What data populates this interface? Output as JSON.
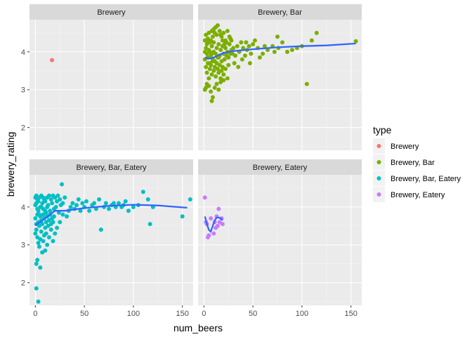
{
  "chart_data": {
    "type": "scatter",
    "xlabel": "num_beers",
    "ylabel": "brewery_rating",
    "xlim": [
      -6,
      161
    ],
    "ylim": [
      1.4,
      4.85
    ],
    "xticks": [
      0,
      50,
      100,
      150
    ],
    "yticks": [
      2,
      3,
      4
    ],
    "legend": {
      "title": "type",
      "position": "right",
      "entries": [
        {
          "label": "Brewery",
          "color": "#F8766D"
        },
        {
          "label": "Brewery, Bar",
          "color": "#7CAE00"
        },
        {
          "label": "Brewery, Bar, Eatery",
          "color": "#00BFC4"
        },
        {
          "label": "Brewery, Eatery",
          "color": "#C77CFF"
        }
      ]
    },
    "smooth_color": "#3366FF",
    "panels": [
      {
        "label": "Brewery",
        "color": "#F8766D",
        "points": [
          [
            17,
            3.78
          ]
        ],
        "smooth": []
      },
      {
        "label": "Brewery, Bar",
        "color": "#7CAE00",
        "points": [
          [
            2,
            4.45
          ],
          [
            3,
            4.2
          ],
          [
            4,
            4.35
          ],
          [
            5,
            4.5
          ],
          [
            6,
            4.0
          ],
          [
            7,
            4.3
          ],
          [
            8,
            4.55
          ],
          [
            9,
            4.4
          ],
          [
            10,
            4.6
          ],
          [
            11,
            4.5
          ],
          [
            12,
            4.65
          ],
          [
            13,
            4.45
          ],
          [
            14,
            4.7
          ],
          [
            16,
            4.55
          ],
          [
            18,
            4.4
          ],
          [
            20,
            4.5
          ],
          [
            22,
            4.3
          ],
          [
            24,
            4.55
          ],
          [
            26,
            4.4
          ],
          [
            28,
            4.3
          ],
          [
            2,
            4.1
          ],
          [
            3,
            3.95
          ],
          [
            4,
            3.85
          ],
          [
            5,
            4.05
          ],
          [
            6,
            3.7
          ],
          [
            7,
            3.9
          ],
          [
            8,
            4.15
          ],
          [
            9,
            3.8
          ],
          [
            10,
            4.0
          ],
          [
            11,
            3.75
          ],
          [
            12,
            3.95
          ],
          [
            13,
            4.1
          ],
          [
            14,
            3.85
          ],
          [
            15,
            4.2
          ],
          [
            16,
            3.9
          ],
          [
            17,
            4.05
          ],
          [
            18,
            3.75
          ],
          [
            19,
            4.15
          ],
          [
            20,
            3.95
          ],
          [
            21,
            3.8
          ],
          [
            22,
            4.1
          ],
          [
            23,
            3.9
          ],
          [
            24,
            4.0
          ],
          [
            25,
            3.85
          ],
          [
            26,
            4.2
          ],
          [
            27,
            3.95
          ],
          [
            28,
            4.05
          ],
          [
            30,
            4.1
          ],
          [
            32,
            3.9
          ],
          [
            34,
            4.15
          ],
          [
            2,
            3.6
          ],
          [
            3,
            3.45
          ],
          [
            4,
            3.7
          ],
          [
            5,
            3.3
          ],
          [
            6,
            3.55
          ],
          [
            7,
            3.65
          ],
          [
            8,
            3.4
          ],
          [
            9,
            3.75
          ],
          [
            10,
            3.5
          ],
          [
            11,
            3.6
          ],
          [
            12,
            3.35
          ],
          [
            13,
            3.7
          ],
          [
            14,
            3.55
          ],
          [
            15,
            3.45
          ],
          [
            16,
            3.65
          ],
          [
            17,
            3.3
          ],
          [
            18,
            3.5
          ],
          [
            19,
            3.6
          ],
          [
            20,
            3.4
          ],
          [
            22,
            3.55
          ],
          [
            1,
            3.0
          ],
          [
            2,
            3.05
          ],
          [
            3,
            3.15
          ],
          [
            5,
            3.1
          ],
          [
            7,
            2.95
          ],
          [
            8,
            2.7
          ],
          [
            9,
            2.8
          ],
          [
            11,
            3.05
          ],
          [
            13,
            3.15
          ],
          [
            15,
            3.0
          ],
          [
            17,
            3.2
          ],
          [
            20,
            3.25
          ],
          [
            24,
            3.3
          ],
          [
            1,
            4.3
          ],
          [
            1,
            3.8
          ],
          [
            1,
            4.0
          ],
          [
            4,
            4.25
          ],
          [
            6,
            4.25
          ],
          [
            8,
            3.95
          ],
          [
            10,
            4.25
          ],
          [
            36,
            4.0
          ],
          [
            38,
            4.25
          ],
          [
            40,
            4.1
          ],
          [
            42,
            3.9
          ],
          [
            44,
            4.05
          ],
          [
            46,
            4.15
          ],
          [
            48,
            3.95
          ],
          [
            50,
            4.2
          ],
          [
            55,
            4.1
          ],
          [
            60,
            3.95
          ],
          [
            65,
            4.05
          ],
          [
            70,
            4.15
          ],
          [
            75,
            4.4
          ],
          [
            76,
            4.1
          ],
          [
            80,
            4.25
          ],
          [
            85,
            4.0
          ],
          [
            90,
            4.05
          ],
          [
            95,
            4.1
          ],
          [
            100,
            4.15
          ],
          [
            110,
            4.3
          ],
          [
            115,
            4.5
          ],
          [
            105,
            3.15
          ],
          [
            155,
            4.28
          ],
          [
            72,
            4.0
          ],
          [
            62,
            4.15
          ],
          [
            57,
            3.85
          ],
          [
            52,
            4.3
          ],
          [
            47,
            3.7
          ],
          [
            43,
            4.25
          ],
          [
            39,
            3.8
          ],
          [
            35,
            3.6
          ],
          [
            31,
            3.7
          ],
          [
            29,
            3.95
          ],
          [
            27,
            4.35
          ],
          [
            25,
            3.65
          ],
          [
            23,
            4.25
          ],
          [
            21,
            4.2
          ],
          [
            19,
            4.3
          ],
          [
            17,
            4.45
          ],
          [
            15,
            3.85
          ]
        ],
        "smooth": [
          [
            1,
            3.85
          ],
          [
            5,
            3.82
          ],
          [
            10,
            3.85
          ],
          [
            20,
            3.97
          ],
          [
            30,
            4.02
          ],
          [
            50,
            4.07
          ],
          [
            75,
            4.12
          ],
          [
            100,
            4.15
          ],
          [
            125,
            4.17
          ],
          [
            155,
            4.22
          ]
        ]
      },
      {
        "label": "Brewery, Bar, Eatery",
        "color": "#00BFC4",
        "points": [
          [
            0,
            4.05
          ],
          [
            1,
            4.1
          ],
          [
            2,
            4.2
          ],
          [
            3,
            3.9
          ],
          [
            4,
            4.25
          ],
          [
            5,
            4.0
          ],
          [
            6,
            4.3
          ],
          [
            7,
            4.1
          ],
          [
            8,
            3.95
          ],
          [
            9,
            4.2
          ],
          [
            10,
            4.15
          ],
          [
            11,
            3.85
          ],
          [
            12,
            4.25
          ],
          [
            13,
            4.05
          ],
          [
            14,
            4.3
          ],
          [
            15,
            3.9
          ],
          [
            16,
            4.2
          ],
          [
            17,
            4.1
          ],
          [
            18,
            4.3
          ],
          [
            19,
            3.95
          ],
          [
            20,
            4.25
          ],
          [
            21,
            4.0
          ],
          [
            22,
            4.15
          ],
          [
            23,
            4.3
          ],
          [
            24,
            3.85
          ],
          [
            25,
            4.2
          ],
          [
            26,
            4.05
          ],
          [
            27,
            4.6
          ],
          [
            28,
            4.1
          ],
          [
            30,
            4.25
          ],
          [
            0,
            3.7
          ],
          [
            1,
            3.55
          ],
          [
            2,
            3.8
          ],
          [
            3,
            3.6
          ],
          [
            4,
            3.5
          ],
          [
            5,
            3.75
          ],
          [
            6,
            3.65
          ],
          [
            7,
            3.55
          ],
          [
            8,
            3.8
          ],
          [
            9,
            3.7
          ],
          [
            10,
            3.45
          ],
          [
            11,
            3.6
          ],
          [
            12,
            3.75
          ],
          [
            13,
            3.5
          ],
          [
            14,
            3.65
          ],
          [
            15,
            3.8
          ],
          [
            16,
            3.55
          ],
          [
            17,
            3.7
          ],
          [
            18,
            3.6
          ],
          [
            19,
            3.75
          ],
          [
            0,
            3.3
          ],
          [
            1,
            3.4
          ],
          [
            2,
            3.2
          ],
          [
            3,
            3.05
          ],
          [
            4,
            2.95
          ],
          [
            5,
            3.15
          ],
          [
            6,
            3.35
          ],
          [
            7,
            2.8
          ],
          [
            8,
            3.1
          ],
          [
            9,
            3.25
          ],
          [
            10,
            2.85
          ],
          [
            11,
            3.3
          ],
          [
            12,
            3.0
          ],
          [
            14,
            3.2
          ],
          [
            16,
            3.4
          ],
          [
            18,
            3.1
          ],
          [
            20,
            3.3
          ],
          [
            22,
            3.45
          ],
          [
            1,
            2.5
          ],
          [
            2,
            2.6
          ],
          [
            1,
            1.85
          ],
          [
            3,
            1.5
          ],
          [
            5,
            2.4
          ],
          [
            25,
            3.6
          ],
          [
            28,
            3.8
          ],
          [
            32,
            3.75
          ],
          [
            34,
            3.9
          ],
          [
            36,
            4.0
          ],
          [
            38,
            4.1
          ],
          [
            40,
            3.95
          ],
          [
            42,
            4.05
          ],
          [
            44,
            4.2
          ],
          [
            46,
            3.9
          ],
          [
            48,
            4.1
          ],
          [
            50,
            4.0
          ],
          [
            52,
            4.15
          ],
          [
            55,
            3.9
          ],
          [
            58,
            4.05
          ],
          [
            60,
            4.1
          ],
          [
            62,
            3.95
          ],
          [
            65,
            4.2
          ],
          [
            67,
            3.4
          ],
          [
            70,
            4.0
          ],
          [
            72,
            4.1
          ],
          [
            75,
            3.95
          ],
          [
            78,
            4.05
          ],
          [
            80,
            4.1
          ],
          [
            82,
            4.0
          ],
          [
            85,
            4.1
          ],
          [
            88,
            4.0
          ],
          [
            90,
            4.05
          ],
          [
            92,
            4.15
          ],
          [
            95,
            3.9
          ],
          [
            100,
            4.0
          ],
          [
            105,
            4.05
          ],
          [
            110,
            4.4
          ],
          [
            115,
            4.2
          ],
          [
            117,
            3.55
          ],
          [
            120,
            4.0
          ],
          [
            150,
            3.75
          ],
          [
            158,
            4.2
          ],
          [
            0,
            4.25
          ],
          [
            1,
            4.3
          ],
          [
            2,
            3.95
          ],
          [
            3,
            4.15
          ],
          [
            4,
            3.8
          ],
          [
            6,
            4.0
          ],
          [
            8,
            4.25
          ],
          [
            10,
            3.9
          ],
          [
            12,
            4.0
          ]
        ],
        "smooth": [
          [
            0,
            3.52
          ],
          [
            5,
            3.6
          ],
          [
            10,
            3.7
          ],
          [
            15,
            3.8
          ],
          [
            20,
            3.9
          ],
          [
            25,
            3.9
          ],
          [
            30,
            3.9
          ],
          [
            50,
            3.97
          ],
          [
            75,
            4.03
          ],
          [
            100,
            4.06
          ],
          [
            125,
            4.04
          ],
          [
            155,
            3.98
          ]
        ]
      },
      {
        "label": "Brewery, Eatery",
        "color": "#C77CFF",
        "points": [
          [
            1,
            4.25
          ],
          [
            2,
            3.6
          ],
          [
            3,
            3.55
          ],
          [
            4,
            3.2
          ],
          [
            5,
            3.25
          ],
          [
            7,
            3.7
          ],
          [
            10,
            3.3
          ],
          [
            11,
            3.6
          ],
          [
            12,
            3.45
          ],
          [
            13,
            3.75
          ],
          [
            14,
            3.5
          ],
          [
            15,
            3.95
          ],
          [
            16,
            3.6
          ],
          [
            18,
            3.7
          ],
          [
            19,
            3.55
          ]
        ],
        "smooth": [
          [
            1,
            3.75
          ],
          [
            3,
            3.55
          ],
          [
            5,
            3.4
          ],
          [
            7,
            3.35
          ],
          [
            9,
            3.5
          ],
          [
            11,
            3.65
          ],
          [
            13,
            3.72
          ],
          [
            15,
            3.72
          ],
          [
            17,
            3.7
          ],
          [
            19,
            3.65
          ]
        ]
      }
    ]
  }
}
